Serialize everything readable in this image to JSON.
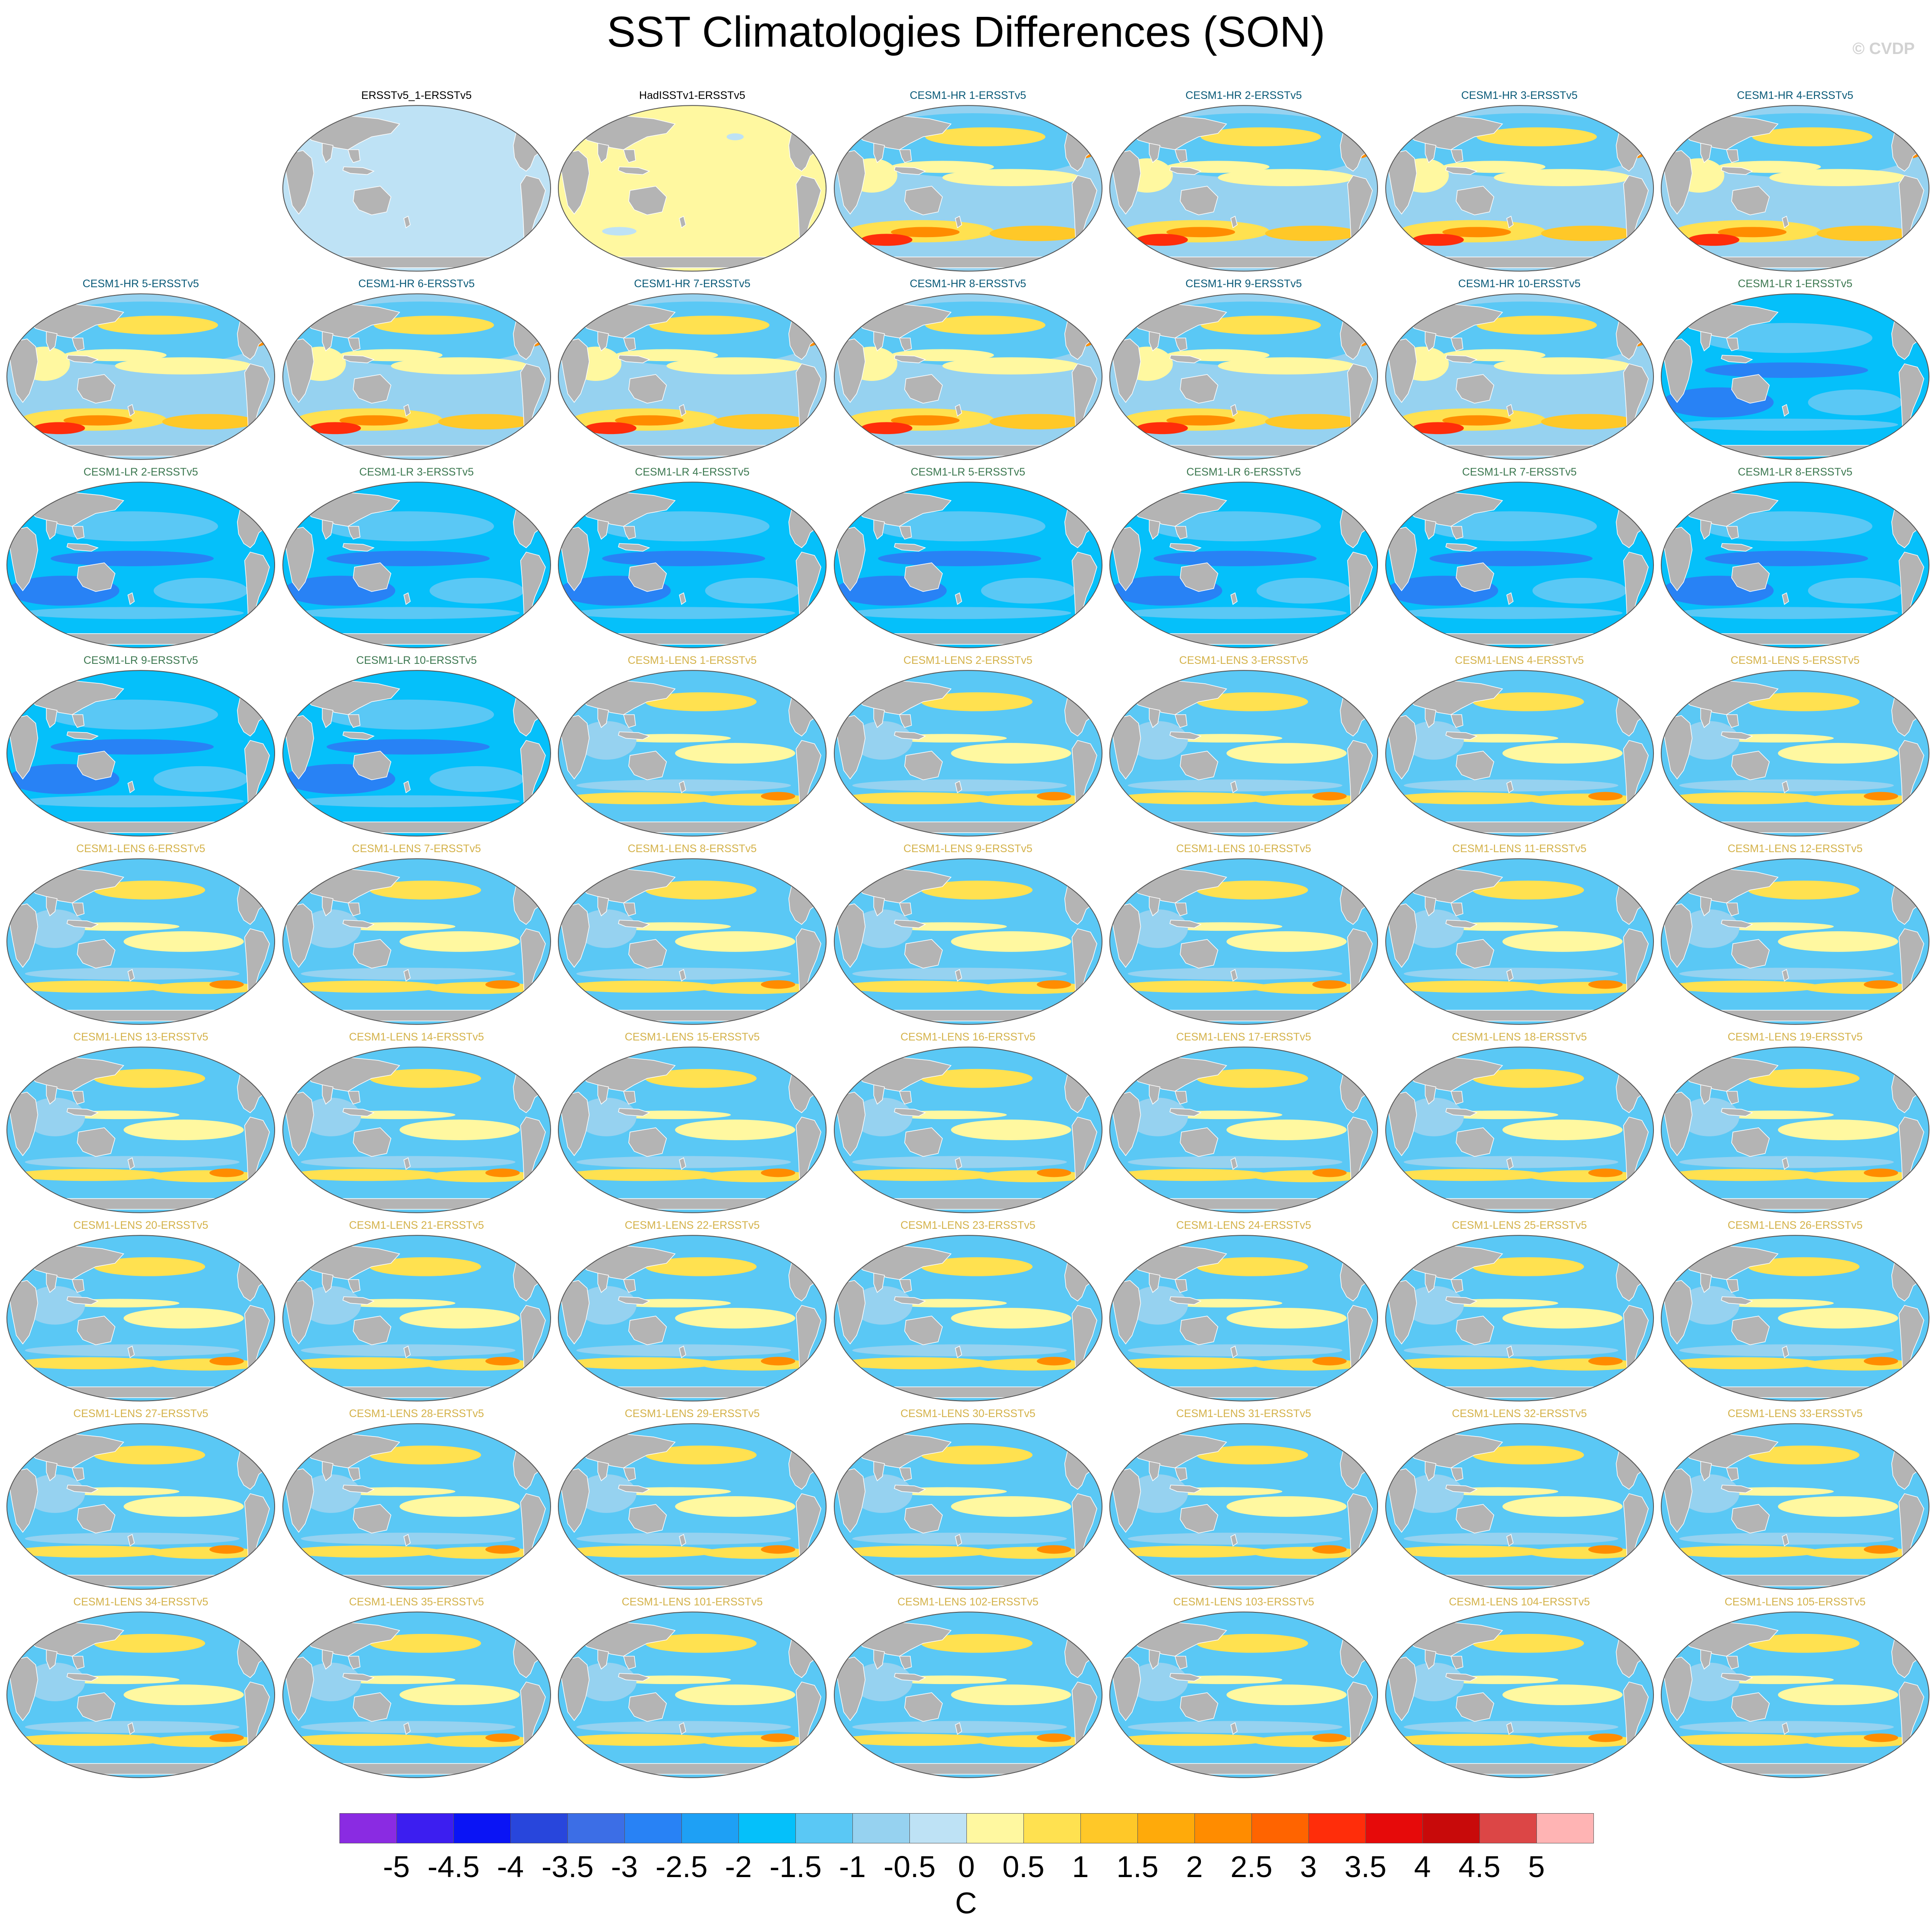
{
  "title": "SST Climatologies Differences (SON)",
  "copyright": "© CVDP",
  "colors": {
    "land": "#b4b4b4",
    "title_obs": "#000000",
    "title_hr": "#0a5a78",
    "title_lr": "#3c7850",
    "title_lens": "#d4b24a"
  },
  "chart_data": {
    "type": "map-panels",
    "variable": "SST climatology difference",
    "season": "SON",
    "projection": "Robinson (global)",
    "panels": [
      {
        "label": "ERSSTv5_1-ERSSTv5",
        "group": "obs",
        "pattern": "uniform_neg"
      },
      {
        "label": "HadISSTv1-ERSSTv5",
        "group": "obs",
        "pattern": "uniform_pos"
      },
      {
        "label": "CESM1-HR 1-ERSSTv5",
        "group": "hr"
      },
      {
        "label": "CESM1-HR 2-ERSSTv5",
        "group": "hr"
      },
      {
        "label": "CESM1-HR 3-ERSSTv5",
        "group": "hr"
      },
      {
        "label": "CESM1-HR 4-ERSSTv5",
        "group": "hr"
      },
      {
        "label": "CESM1-HR 5-ERSSTv5",
        "group": "hr"
      },
      {
        "label": "CESM1-HR 6-ERSSTv5",
        "group": "hr"
      },
      {
        "label": "CESM1-HR 7-ERSSTv5",
        "group": "hr"
      },
      {
        "label": "CESM1-HR 8-ERSSTv5",
        "group": "hr"
      },
      {
        "label": "CESM1-HR 9-ERSSTv5",
        "group": "hr"
      },
      {
        "label": "CESM1-HR 10-ERSSTv5",
        "group": "hr"
      },
      {
        "label": "CESM1-LR 1-ERSSTv5",
        "group": "lr"
      },
      {
        "label": "CESM1-LR 2-ERSSTv5",
        "group": "lr"
      },
      {
        "label": "CESM1-LR 3-ERSSTv5",
        "group": "lr"
      },
      {
        "label": "CESM1-LR 4-ERSSTv5",
        "group": "lr"
      },
      {
        "label": "CESM1-LR 5-ERSSTv5",
        "group": "lr"
      },
      {
        "label": "CESM1-LR 6-ERSSTv5",
        "group": "lr"
      },
      {
        "label": "CESM1-LR 7-ERSSTv5",
        "group": "lr"
      },
      {
        "label": "CESM1-LR 8-ERSSTv5",
        "group": "lr"
      },
      {
        "label": "CESM1-LR 9-ERSSTv5",
        "group": "lr"
      },
      {
        "label": "CESM1-LR 10-ERSSTv5",
        "group": "lr"
      },
      {
        "label": "CESM1-LENS 1-ERSSTv5",
        "group": "lens"
      },
      {
        "label": "CESM1-LENS 2-ERSSTv5",
        "group": "lens"
      },
      {
        "label": "CESM1-LENS 3-ERSSTv5",
        "group": "lens"
      },
      {
        "label": "CESM1-LENS 4-ERSSTv5",
        "group": "lens"
      },
      {
        "label": "CESM1-LENS 5-ERSSTv5",
        "group": "lens"
      },
      {
        "label": "CESM1-LENS 6-ERSSTv5",
        "group": "lens"
      },
      {
        "label": "CESM1-LENS 7-ERSSTv5",
        "group": "lens"
      },
      {
        "label": "CESM1-LENS 8-ERSSTv5",
        "group": "lens"
      },
      {
        "label": "CESM1-LENS 9-ERSSTv5",
        "group": "lens"
      },
      {
        "label": "CESM1-LENS 10-ERSSTv5",
        "group": "lens"
      },
      {
        "label": "CESM1-LENS 11-ERSSTv5",
        "group": "lens"
      },
      {
        "label": "CESM1-LENS 12-ERSSTv5",
        "group": "lens"
      },
      {
        "label": "CESM1-LENS 13-ERSSTv5",
        "group": "lens"
      },
      {
        "label": "CESM1-LENS 14-ERSSTv5",
        "group": "lens"
      },
      {
        "label": "CESM1-LENS 15-ERSSTv5",
        "group": "lens"
      },
      {
        "label": "CESM1-LENS 16-ERSSTv5",
        "group": "lens"
      },
      {
        "label": "CESM1-LENS 17-ERSSTv5",
        "group": "lens"
      },
      {
        "label": "CESM1-LENS 18-ERSSTv5",
        "group": "lens"
      },
      {
        "label": "CESM1-LENS 19-ERSSTv5",
        "group": "lens"
      },
      {
        "label": "CESM1-LENS 20-ERSSTv5",
        "group": "lens"
      },
      {
        "label": "CESM1-LENS 21-ERSSTv5",
        "group": "lens"
      },
      {
        "label": "CESM1-LENS 22-ERSSTv5",
        "group": "lens"
      },
      {
        "label": "CESM1-LENS 23-ERSSTv5",
        "group": "lens"
      },
      {
        "label": "CESM1-LENS 24-ERSSTv5",
        "group": "lens"
      },
      {
        "label": "CESM1-LENS 25-ERSSTv5",
        "group": "lens"
      },
      {
        "label": "CESM1-LENS 26-ERSSTv5",
        "group": "lens"
      },
      {
        "label": "CESM1-LENS 27-ERSSTv5",
        "group": "lens"
      },
      {
        "label": "CESM1-LENS 28-ERSSTv5",
        "group": "lens"
      },
      {
        "label": "CESM1-LENS 29-ERSSTv5",
        "group": "lens"
      },
      {
        "label": "CESM1-LENS 30-ERSSTv5",
        "group": "lens"
      },
      {
        "label": "CESM1-LENS 31-ERSSTv5",
        "group": "lens"
      },
      {
        "label": "CESM1-LENS 32-ERSSTv5",
        "group": "lens"
      },
      {
        "label": "CESM1-LENS 33-ERSSTv5",
        "group": "lens"
      },
      {
        "label": "CESM1-LENS 34-ERSSTv5",
        "group": "lens"
      },
      {
        "label": "CESM1-LENS 35-ERSSTv5",
        "group": "lens"
      },
      {
        "label": "CESM1-LENS 101-ERSSTv5",
        "group": "lens"
      },
      {
        "label": "CESM1-LENS 102-ERSSTv5",
        "group": "lens"
      },
      {
        "label": "CESM1-LENS 103-ERSSTv5",
        "group": "lens"
      },
      {
        "label": "CESM1-LENS 104-ERSSTv5",
        "group": "lens"
      },
      {
        "label": "CESM1-LENS 105-ERSSTv5",
        "group": "lens"
      }
    ],
    "colorbar": {
      "unit": "C",
      "tick_labels": [
        "-5",
        "-4.5",
        "-4",
        "-3.5",
        "-3",
        "-2.5",
        "-2",
        "-1.5",
        "-1",
        "-0.5",
        "0",
        "0.5",
        "1",
        "1.5",
        "2",
        "2.5",
        "3",
        "3.5",
        "4",
        "4.5",
        "5"
      ],
      "colors": [
        "#8a2be2",
        "#3c1ef0",
        "#0a14f5",
        "#2846dc",
        "#3c6ee6",
        "#2882f5",
        "#1ea0f5",
        "#05c0fa",
        "#5ac8f5",
        "#96d2f0",
        "#bee2f5",
        "#fff8a0",
        "#ffe150",
        "#ffc828",
        "#ffaa0a",
        "#ff8c00",
        "#ff6400",
        "#ff2d0a",
        "#e60a0a",
        "#c80a0a",
        "#dc4646",
        "#ffb4b4"
      ]
    }
  }
}
